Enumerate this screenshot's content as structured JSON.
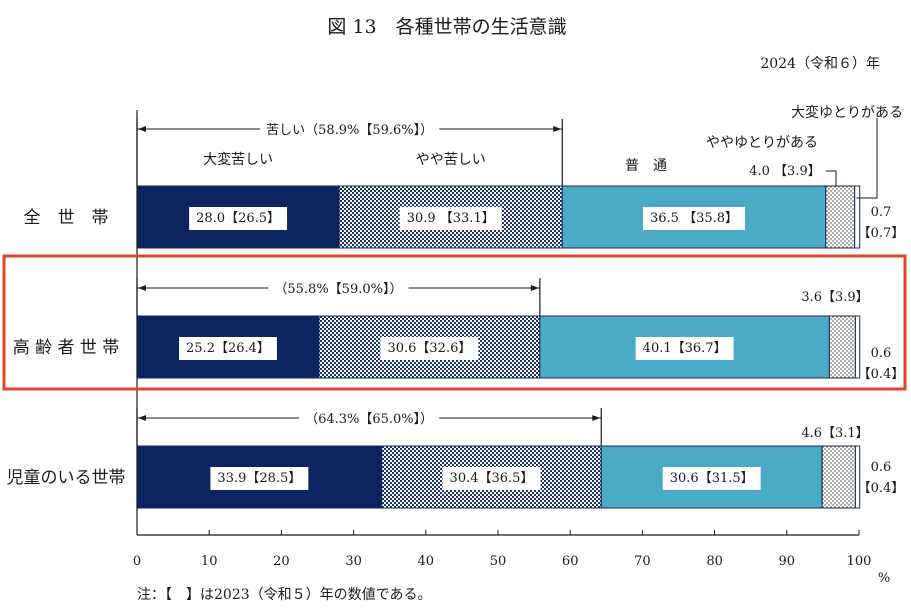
{
  "chart_data": {
    "type": "bar",
    "orientation": "horizontal",
    "stacked": true,
    "title": "図 13　各種世帯の生活意識",
    "year_label": "2024（令和６）年",
    "xlim": [
      0,
      100
    ],
    "x_ticks": [
      "0",
      "10",
      "20",
      "30",
      "40",
      "50",
      "60",
      "70",
      "80",
      "90",
      "100"
    ],
    "x_unit": "%",
    "note": "注：【　】は2023（令和５）年の数値である。",
    "categories": [
      "全　世　帯",
      "高 齢 者 世 帯",
      "児童のいる世帯"
    ],
    "highlighted_category": "高 齢 者 世 帯",
    "series": [
      {
        "name": "大変苦しい",
        "color": "#0d2461",
        "values": [
          28.0,
          25.2,
          33.9
        ],
        "labels": [
          "28.0【26.5】",
          "25.2【26.4】",
          "33.9【28.5】"
        ]
      },
      {
        "name": "やや苦しい",
        "color": "#3b4f7c",
        "values": [
          30.9,
          30.6,
          30.4
        ],
        "labels": [
          "30.9 【33.1】",
          "30.6【32.6】",
          "30.4【36.5】"
        ]
      },
      {
        "name": "普　通",
        "color": "#4baac6",
        "values": [
          36.5,
          40.1,
          30.6
        ],
        "labels": [
          "36.5 【35.8】",
          "40.1【36.7】",
          "30.6【31.5】"
        ]
      },
      {
        "name": "ややゆとりがある",
        "color": "#ffffff",
        "values": [
          4.0,
          3.6,
          4.6
        ],
        "labels": [
          "4.0 【3.9】",
          "3.6【3.9】",
          "4.6【3.1】"
        ]
      },
      {
        "name": "大変ゆとりがある",
        "color": "#ffffff",
        "values": [
          0.7,
          0.6,
          0.6
        ],
        "labels": [
          "0.7【0.7】",
          "0.6【0.4】",
          "0.6【0.4】"
        ]
      }
    ],
    "kurushii_totals": [
      58.9,
      55.8,
      64.3
    ],
    "kurushii_labels": [
      "苦しい（58.9%【59.6%】）",
      "（55.8%【59.0%】）",
      "（64.3%【65.0%】）"
    ]
  }
}
